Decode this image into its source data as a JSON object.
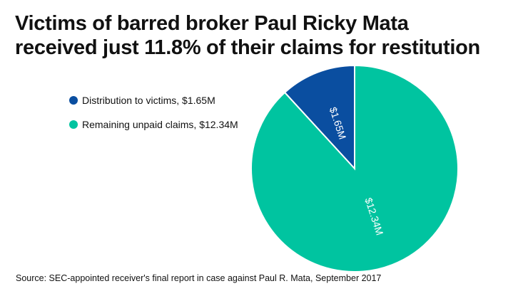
{
  "chart_data": {
    "type": "pie",
    "title": "Victims of barred broker Paul Ricky Mata received just 11.8% of their claims for restitution",
    "title_lines": [
      "Victims of barred broker Paul Ricky Mata",
      "received just 11.8% of their claims for restitution"
    ],
    "slices": [
      {
        "name": "Distribution to victims, $1.65M",
        "value": 1.65,
        "label": "$1.65M",
        "color": "#0a4ea0"
      },
      {
        "name": "Remaining unpaid claims, $12.34M",
        "value": 12.34,
        "label": "$12.34M",
        "color": "#00c4a0"
      }
    ],
    "legend_position": "left",
    "source": "Source: SEC-appointed receiver's final report in case against Paul R. Mata, September 2017"
  }
}
